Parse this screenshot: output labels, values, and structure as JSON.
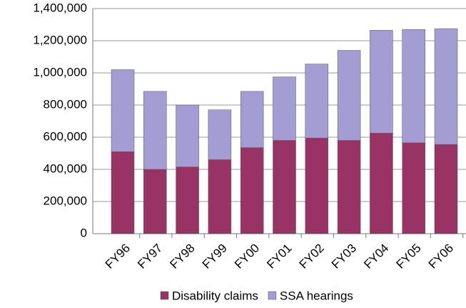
{
  "chart_data": {
    "type": "stacked-bar",
    "categories": [
      "FY96",
      "FY97",
      "FY98",
      "FY99",
      "FY00",
      "FY01",
      "FY02",
      "FY03",
      "FY04",
      "FY05",
      "FY06"
    ],
    "series": [
      {
        "name": "Disability claims",
        "color": "#993366",
        "values": [
          510000,
          400000,
          415000,
          460000,
          535000,
          580000,
          595000,
          580000,
          625000,
          565000,
          555000
        ]
      },
      {
        "name": "SSA hearings",
        "color": "#a39dd4",
        "values": [
          510000,
          485000,
          385000,
          310000,
          350000,
          395000,
          460000,
          560000,
          640000,
          705000,
          720000
        ]
      }
    ],
    "ylim": [
      0,
      1400000
    ],
    "yticks": [
      0,
      {
        "value": 200000,
        "label": "200,000"
      },
      {
        "value": 400000,
        "label": "400,000"
      },
      {
        "value": 600000,
        "label": "600,000"
      },
      {
        "value": 800000,
        "label": "800,000"
      },
      {
        "value": 1000000,
        "label": "1,000,000"
      },
      {
        "value": 1200000,
        "label": "1,200,000"
      },
      {
        "value": 1400000,
        "label": "1,400,000"
      }
    ],
    "grid": true
  }
}
